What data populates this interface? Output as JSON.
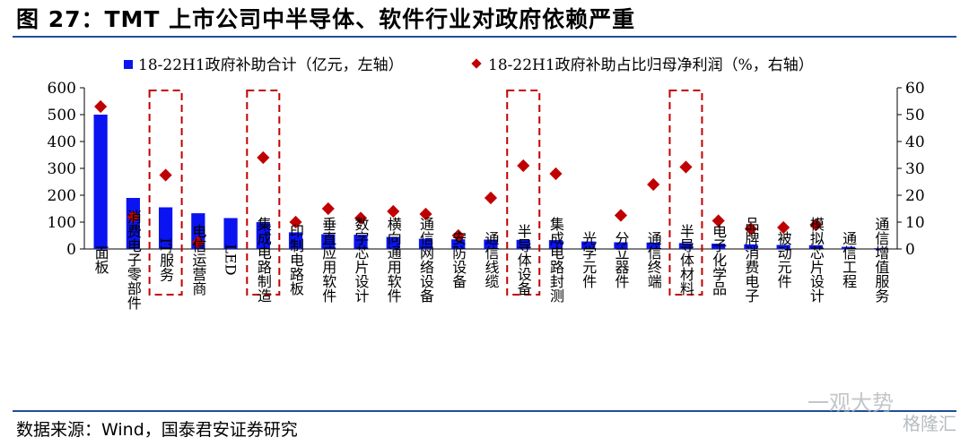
{
  "header": {
    "title": "图 27：TMT 上市公司中半导体、软件行业对政府依赖严重"
  },
  "footer": {
    "source": "数据来源：Wind，国泰君安证券研究"
  },
  "watermark": {
    "left_text": "一观大势",
    "right_text": "格隆汇"
  },
  "colors": {
    "bar": "#0a14f0",
    "marker": "#c00000",
    "box": "#c00000",
    "rule": "#1f4e9c"
  },
  "chart_data": {
    "type": "bar",
    "categories": [
      "面板",
      "消费电子零部件",
      "IT服务",
      "电信运营商",
      "LED",
      "集成电路制造",
      "印制电路板",
      "垂直应用软件",
      "数字芯片设计",
      "横向通用软件",
      "通信网络设备",
      "安防设备",
      "通信线缆",
      "半导体设备",
      "集成电路封测",
      "光学元件",
      "分立器件",
      "通信终端",
      "半导体材料",
      "电子化学品",
      "品牌消费电子",
      "被动元件",
      "模拟芯片设计",
      "通信工程",
      "通信增值服务"
    ],
    "series": [
      {
        "name": "18-22H1政府补助合计（亿元，左轴）",
        "type": "bar",
        "axis": "left",
        "values": [
          500,
          190,
          155,
          133,
          115,
          100,
          62,
          55,
          53,
          45,
          38,
          36,
          35,
          34,
          33,
          28,
          25,
          24,
          22,
          20,
          17,
          15,
          14,
          8,
          3
        ]
      },
      {
        "name": "18-22H1政府补助占比归母净利润（%，右轴）",
        "type": "scatter",
        "axis": "right",
        "values": [
          53,
          12,
          27.5,
          2.5,
          null,
          34,
          10,
          15,
          11.5,
          14,
          13,
          5,
          19,
          31,
          28,
          null,
          12.5,
          24,
          30.5,
          10.5,
          7.5,
          8,
          9,
          null,
          null
        ]
      }
    ],
    "y_left": {
      "ylim": [
        0,
        600
      ],
      "ticks": [
        "0",
        "100",
        "200",
        "300",
        "400",
        "500",
        "600"
      ]
    },
    "y_right": {
      "ylim": [
        0,
        60
      ],
      "ticks": [
        "0",
        "10",
        "20",
        "30",
        "40",
        "50",
        "60"
      ]
    },
    "highlighted_categories": [
      "IT服务",
      "集成电路制造",
      "半导体设备",
      "半导体材料"
    ],
    "legend_position": "top",
    "grid": false
  }
}
